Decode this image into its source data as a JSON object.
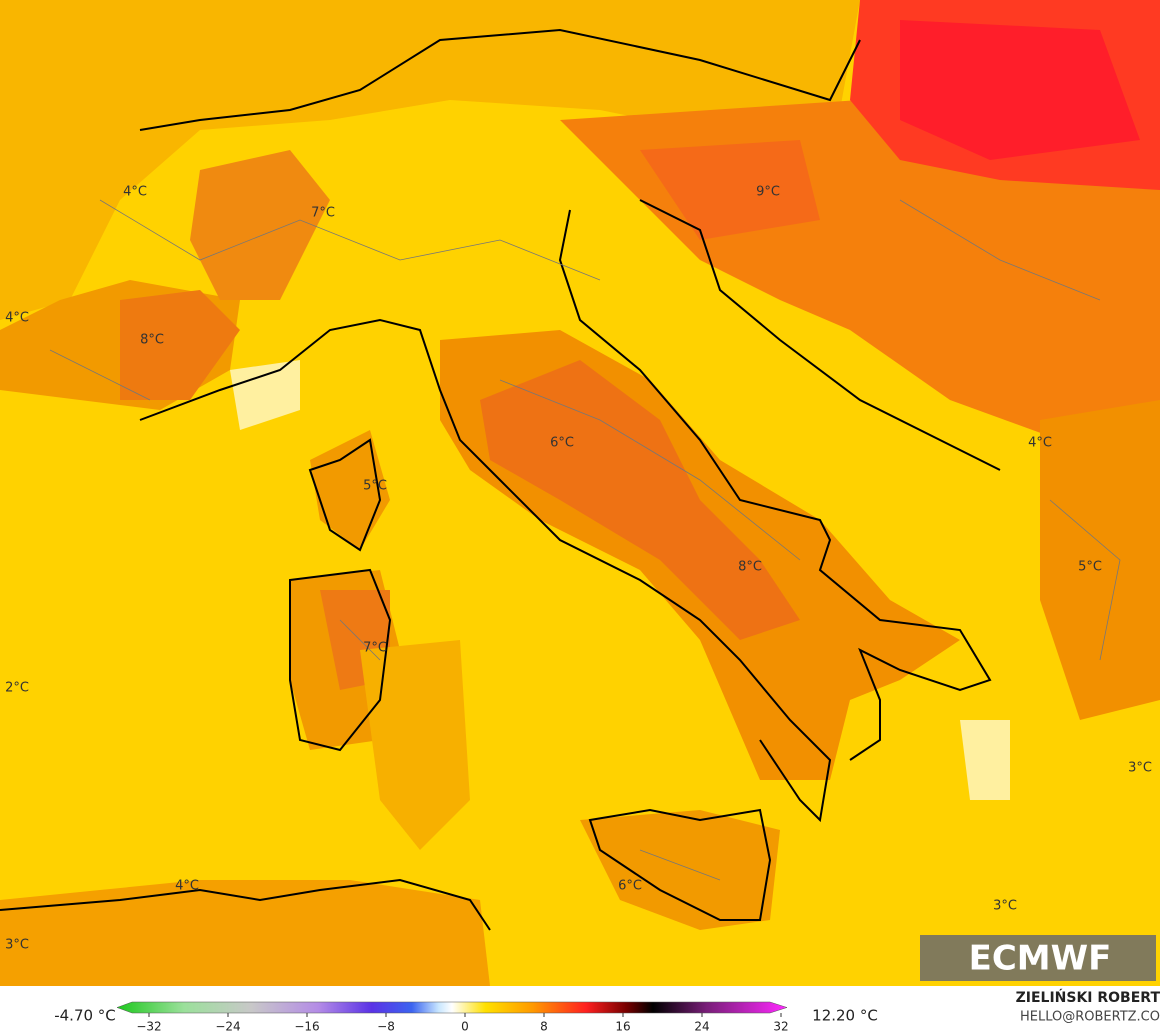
{
  "map": {
    "temperature_labels": [
      "4°C",
      "7°C",
      "9°C",
      "4°C",
      "8°C",
      "6°C",
      "5°C",
      "4°C",
      "8°C",
      "5°C",
      "7°C",
      "2°C",
      "3°C",
      "4°C",
      "6°C",
      "3°C",
      "3°C"
    ],
    "logo": "ECMWF"
  },
  "legend": {
    "min_label": "-4.70 °C",
    "max_label": "12.20 °C",
    "ticks": [
      "−32",
      "−24",
      "−16",
      "−8",
      "0",
      "8",
      "16",
      "24",
      "32"
    ]
  },
  "credits": {
    "name": "ZIELIŃSKI ROBERT",
    "email": "HELLO@ROBERTZ.CO"
  }
}
